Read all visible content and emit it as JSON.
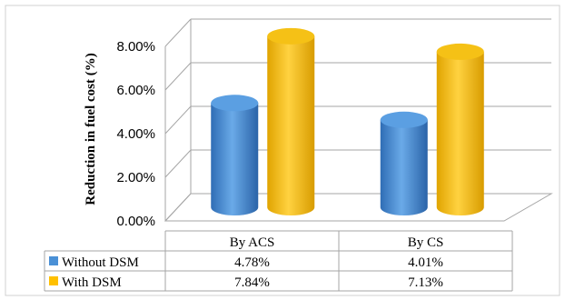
{
  "chart_data": {
    "type": "bar",
    "style": "3d-cylinder",
    "title": "",
    "ylabel": "Reduction in fuel cost (%)",
    "xlabel": "",
    "categories": [
      "By ACS",
      "By CS"
    ],
    "series": [
      {
        "name": "Without DSM",
        "values": [
          4.78,
          4.01
        ],
        "labels": [
          "4.78%",
          "4.01%"
        ],
        "color": "#4a90d6"
      },
      {
        "name": "With DSM",
        "values": [
          7.84,
          7.13
        ],
        "labels": [
          "7.84%",
          "7.13%"
        ],
        "color": "#ffc000"
      }
    ],
    "ylim": [
      0,
      8
    ],
    "yticks": [
      "0.00%",
      "2.00%",
      "4.00%",
      "6.00%",
      "8.00%"
    ],
    "ytick_values": [
      0,
      2,
      4,
      6,
      8
    ],
    "grid": true,
    "legend": "data-table-left"
  }
}
